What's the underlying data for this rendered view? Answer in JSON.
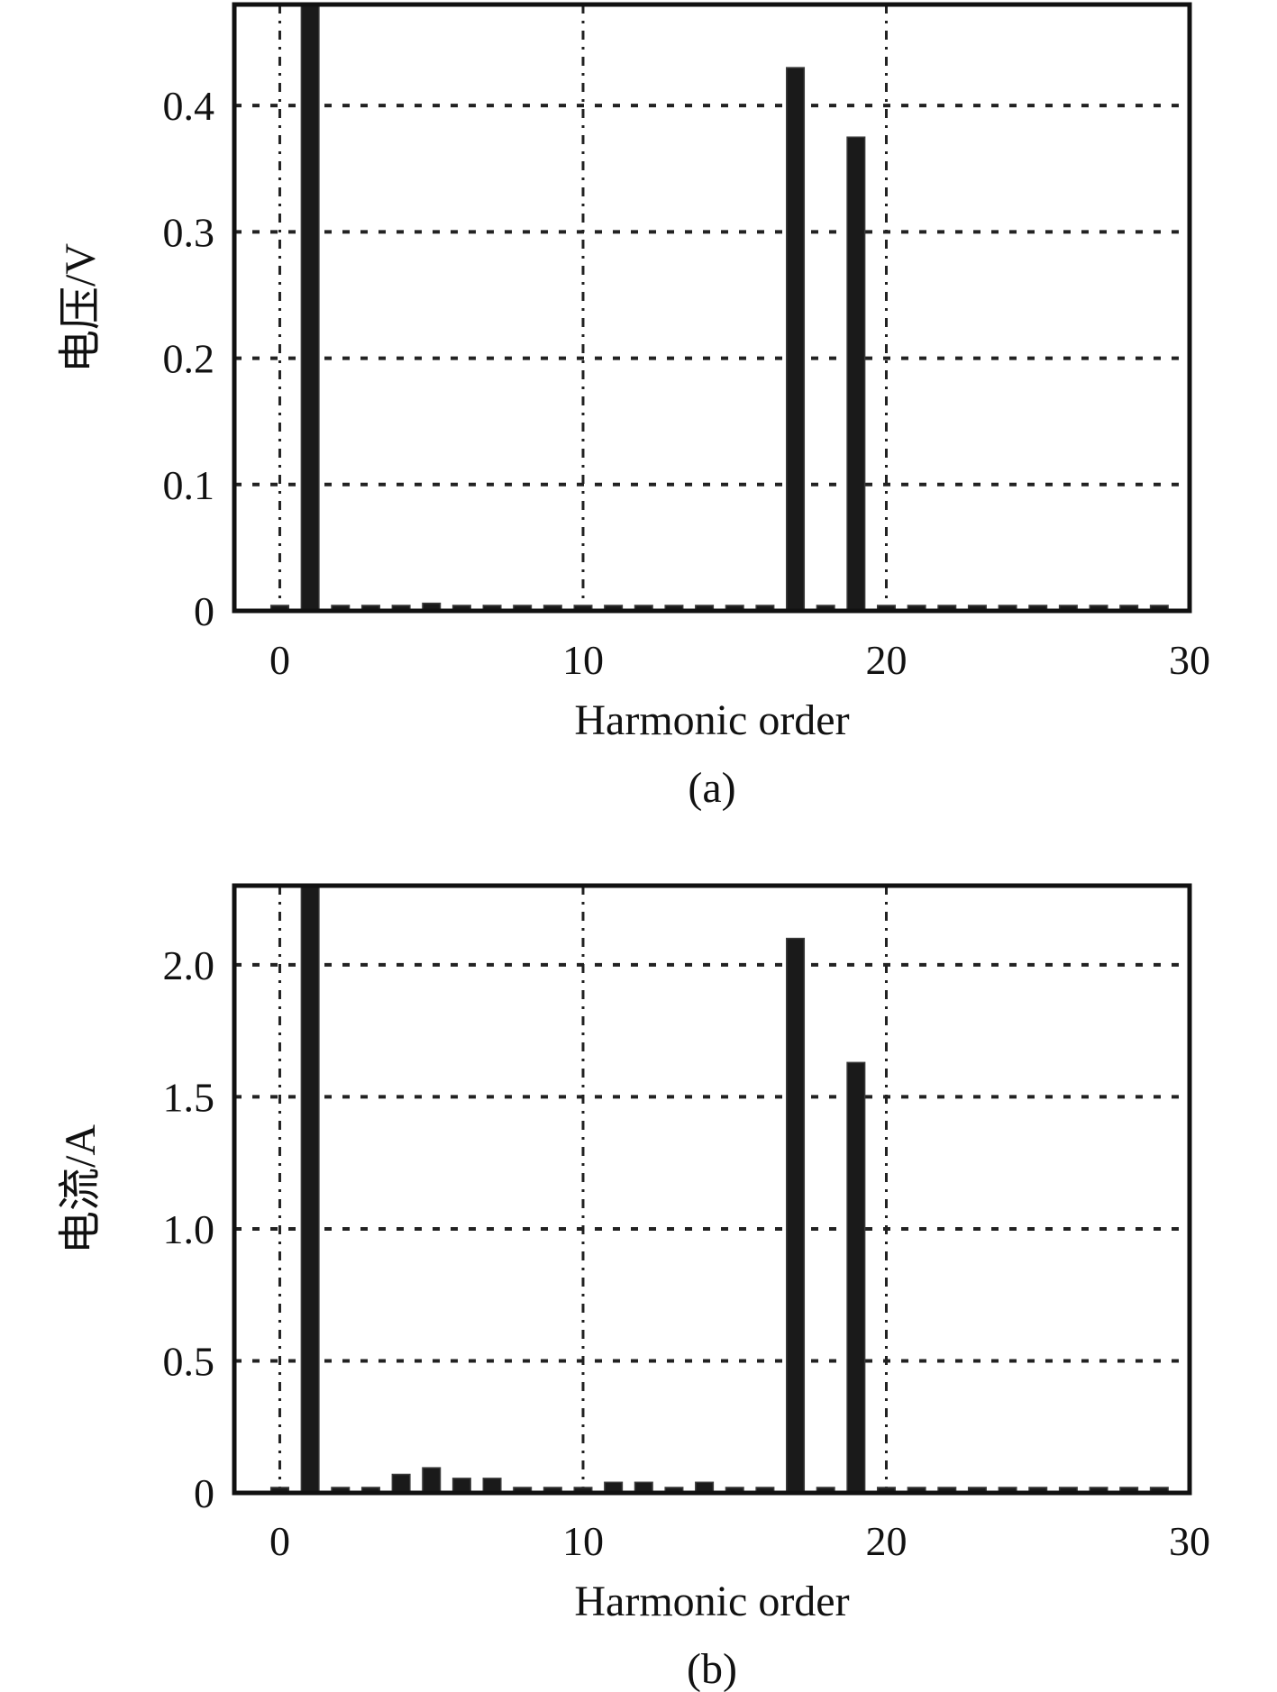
{
  "chart_data": [
    {
      "type": "bar",
      "caption": "(a)",
      "xlabel": "Harmonic order",
      "ylabel": "电压/V",
      "xlim": [
        -1.5,
        30
      ],
      "ylim": [
        0,
        0.48
      ],
      "xticks": [
        0,
        10,
        20,
        30
      ],
      "xtick_labels": [
        "0",
        "10",
        "20",
        "30"
      ],
      "yticks": [
        0,
        0.1,
        0.2,
        0.3,
        0.4
      ],
      "ytick_labels": [
        "0",
        "0.1",
        "0.2",
        "0.3",
        "0.4"
      ],
      "grid": true,
      "bar_color": "#1a1a1a",
      "x": [
        0,
        1,
        2,
        3,
        4,
        5,
        6,
        7,
        8,
        9,
        10,
        11,
        12,
        13,
        14,
        15,
        16,
        17,
        18,
        19,
        20,
        21,
        22,
        23,
        24,
        25,
        26,
        27,
        28,
        29
      ],
      "values": [
        0.002,
        0.48,
        0.002,
        0.002,
        0.002,
        0.006,
        0.002,
        0.002,
        0.002,
        0.002,
        0.002,
        0.002,
        0.002,
        0.002,
        0.002,
        0.002,
        0.002,
        0.43,
        0.002,
        0.375,
        0.002,
        0.002,
        0.002,
        0.002,
        0.002,
        0.002,
        0.002,
        0.002,
        0.002,
        0.002
      ]
    },
    {
      "type": "bar",
      "caption": "(b)",
      "xlabel": "Harmonic order",
      "ylabel": "电流/A",
      "xlim": [
        -1.5,
        30
      ],
      "ylim": [
        0,
        2.3
      ],
      "xticks": [
        0,
        10,
        20,
        30
      ],
      "xtick_labels": [
        "0",
        "10",
        "20",
        "30"
      ],
      "yticks": [
        0,
        0.5,
        1.0,
        1.5,
        2.0
      ],
      "ytick_labels": [
        "0",
        "0.5",
        "1.0",
        "1.5",
        "2.0"
      ],
      "grid": true,
      "bar_color": "#1a1a1a",
      "x": [
        0,
        1,
        2,
        3,
        4,
        5,
        6,
        7,
        8,
        9,
        10,
        11,
        12,
        13,
        14,
        15,
        16,
        17,
        18,
        19,
        20,
        21,
        22,
        23,
        24,
        25,
        26,
        27,
        28,
        29
      ],
      "values": [
        0.02,
        2.3,
        0.02,
        0.02,
        0.07,
        0.095,
        0.055,
        0.055,
        0.02,
        0.02,
        0.02,
        0.04,
        0.04,
        0.02,
        0.04,
        0.02,
        0.02,
        2.1,
        0.02,
        1.63,
        0.02,
        0.02,
        0.02,
        0.02,
        0.02,
        0.02,
        0.02,
        0.02,
        0.02,
        0.02
      ]
    }
  ]
}
